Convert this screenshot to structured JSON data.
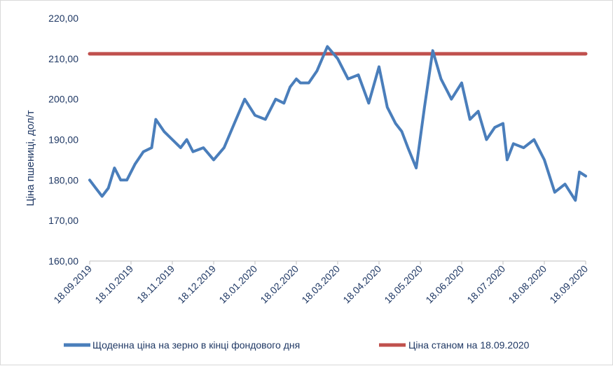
{
  "chart_data": {
    "type": "line",
    "title": "",
    "xlabel": "",
    "ylabel": "Ціна пшениці, дол/т",
    "ylim": [
      160,
      220
    ],
    "yticks": [
      "160,00",
      "170,00",
      "180,00",
      "190,00",
      "200,00",
      "210,00",
      "220,00"
    ],
    "xticks": [
      "18.09.2019",
      "18.10.2019",
      "18.11.2019",
      "18.12.2019",
      "18.01.2020",
      "18.02.2020",
      "18.03.2020",
      "18.04.2020",
      "18.05.2020",
      "18.06.2020",
      "18.07.2020",
      "18.08.2020",
      "18.09.2020"
    ],
    "grid": false,
    "legend": "bottom",
    "colors": {
      "daily": "#4a7ebb",
      "reference": "#c0504d",
      "text": "#1f3864"
    },
    "series": [
      {
        "name": "Щоденна ціна на зерно в кінці фондового дня",
        "x": [
          0,
          0.15,
          0.3,
          0.45,
          0.6,
          0.75,
          0.9,
          1.1,
          1.3,
          1.5,
          1.6,
          1.8,
          2.0,
          2.2,
          2.35,
          2.5,
          2.75,
          3.0,
          3.25,
          3.5,
          3.75,
          4.0,
          4.25,
          4.5,
          4.7,
          4.85,
          5.0,
          5.1,
          5.3,
          5.5,
          5.75,
          6.0,
          6.25,
          6.5,
          6.75,
          7.0,
          7.2,
          7.4,
          7.55,
          7.7,
          7.9,
          8.1,
          8.3,
          8.5,
          8.75,
          9.0,
          9.2,
          9.4,
          9.6,
          9.8,
          10.0,
          10.1,
          10.25,
          10.5,
          10.75,
          11.0,
          11.25,
          11.5,
          11.75,
          11.85,
          12.0
        ],
        "values": [
          180,
          178,
          176,
          178,
          183,
          180,
          180,
          184,
          187,
          188,
          195,
          192,
          190,
          188,
          190,
          187,
          188,
          185,
          188,
          194,
          200,
          196,
          195,
          200,
          199,
          203,
          205,
          204,
          204,
          207,
          213,
          210,
          205,
          206,
          199,
          208,
          198,
          194,
          192,
          188,
          183,
          198,
          212,
          205,
          200,
          204,
          195,
          197,
          190,
          193,
          194,
          185,
          189,
          188,
          190,
          185,
          177,
          179,
          175,
          182,
          181
        ]
      },
      {
        "name": "Ціна станом на 18.09.2020",
        "x": [
          0,
          12
        ],
        "values": [
          211.2,
          211.2
        ]
      }
    ]
  }
}
